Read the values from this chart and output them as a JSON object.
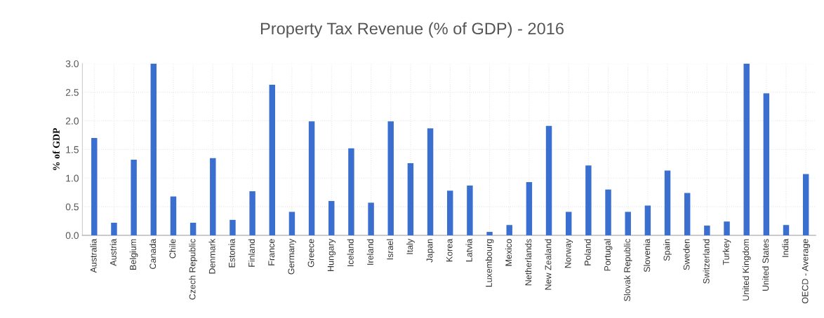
{
  "chart_data": {
    "type": "bar",
    "title": "Property Tax Revenue (% of GDP) - 2016",
    "ylabel": "% of GDP",
    "categories": [
      "Australia",
      "Austria",
      "Belgium",
      "Canada",
      "Chile",
      "Czech Republic",
      "Denmark",
      "Estonia",
      "Finland",
      "France",
      "Germany",
      "Greece",
      "Hungary",
      "Iceland",
      "Ireland",
      "Israel",
      "Italy",
      "Japan",
      "Korea",
      "Latvia",
      "Luxembourg",
      "Mexico",
      "Netherlands",
      "New Zealand",
      "Norway",
      "Poland",
      "Portugal",
      "Slovak Republic",
      "Slovenia",
      "Spain",
      "Sweden",
      "Switzerland",
      "Turkey",
      "United Kingdom",
      "United States",
      "India",
      "OECD - Average"
    ],
    "values": [
      1.7,
      0.22,
      1.32,
      3.0,
      0.68,
      0.22,
      1.35,
      0.27,
      0.77,
      2.63,
      0.41,
      1.99,
      0.6,
      1.52,
      0.57,
      1.99,
      1.26,
      1.87,
      0.78,
      0.87,
      0.06,
      0.18,
      0.93,
      1.91,
      0.41,
      1.22,
      0.8,
      0.41,
      0.52,
      1.13,
      0.74,
      0.17,
      0.24,
      3.0,
      2.48,
      0.18,
      1.07
    ],
    "color": "#3a6fd0",
    "ylim": [
      0,
      3.0
    ],
    "yticks": [
      {
        "value": 0,
        "label": "0.0"
      },
      {
        "value": 0.5,
        "label": "0.5"
      },
      {
        "value": 1,
        "label": "1.0"
      },
      {
        "value": 1.5,
        "label": "1.5"
      },
      {
        "value": 2,
        "label": "2.0"
      },
      {
        "value": 2.5,
        "label": "2.5"
      },
      {
        "value": 3,
        "label": "3.0"
      }
    ],
    "grid": true
  }
}
